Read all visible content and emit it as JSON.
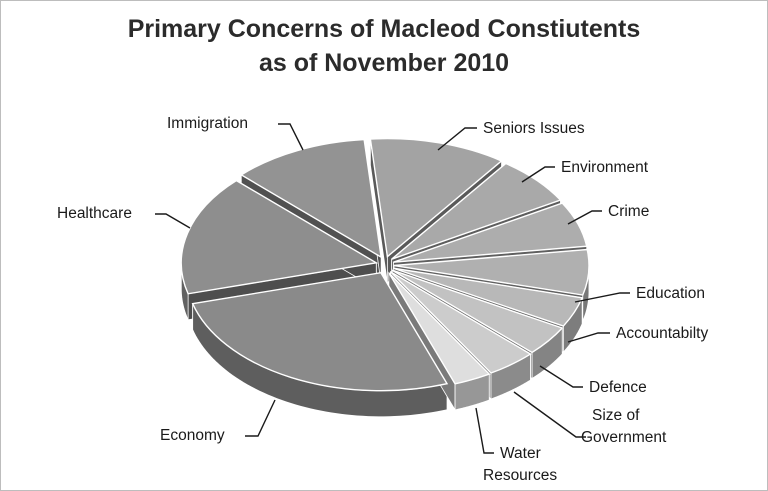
{
  "chart_data": {
    "type": "pie",
    "title_line1": "Primary Concerns of Macleod Constiutents",
    "title_line2": "as of November 2010",
    "three_d": true,
    "exploded": true,
    "slices": [
      {
        "label": "Seniors Issues",
        "value": 11.0,
        "color": "#a3a3a3"
      },
      {
        "label": "Environment",
        "value": 6.5,
        "color": "#a9a9a9"
      },
      {
        "label": "Crime",
        "value": 6.0,
        "color": "#adadad"
      },
      {
        "label": "Education",
        "value": 6.0,
        "color": "#b0b0b0"
      },
      {
        "label": "Accountabilty",
        "value": 4.0,
        "color": "#b8b8b8"
      },
      {
        "label": "Defence",
        "value": 4.0,
        "color": "#c2c2c2"
      },
      {
        "label": "Size of Government",
        "value": 4.0,
        "color": "#cccccc"
      },
      {
        "label": "Water Resources",
        "value": 3.0,
        "color": "#dedede"
      },
      {
        "label": "Economy",
        "value": 25.5,
        "color": "#8a8a8a"
      },
      {
        "label": "Healthcare",
        "value": 16.0,
        "color": "#8e8e8e"
      },
      {
        "label": "Immigration",
        "value": 11.0,
        "color": "#939393"
      }
    ]
  }
}
